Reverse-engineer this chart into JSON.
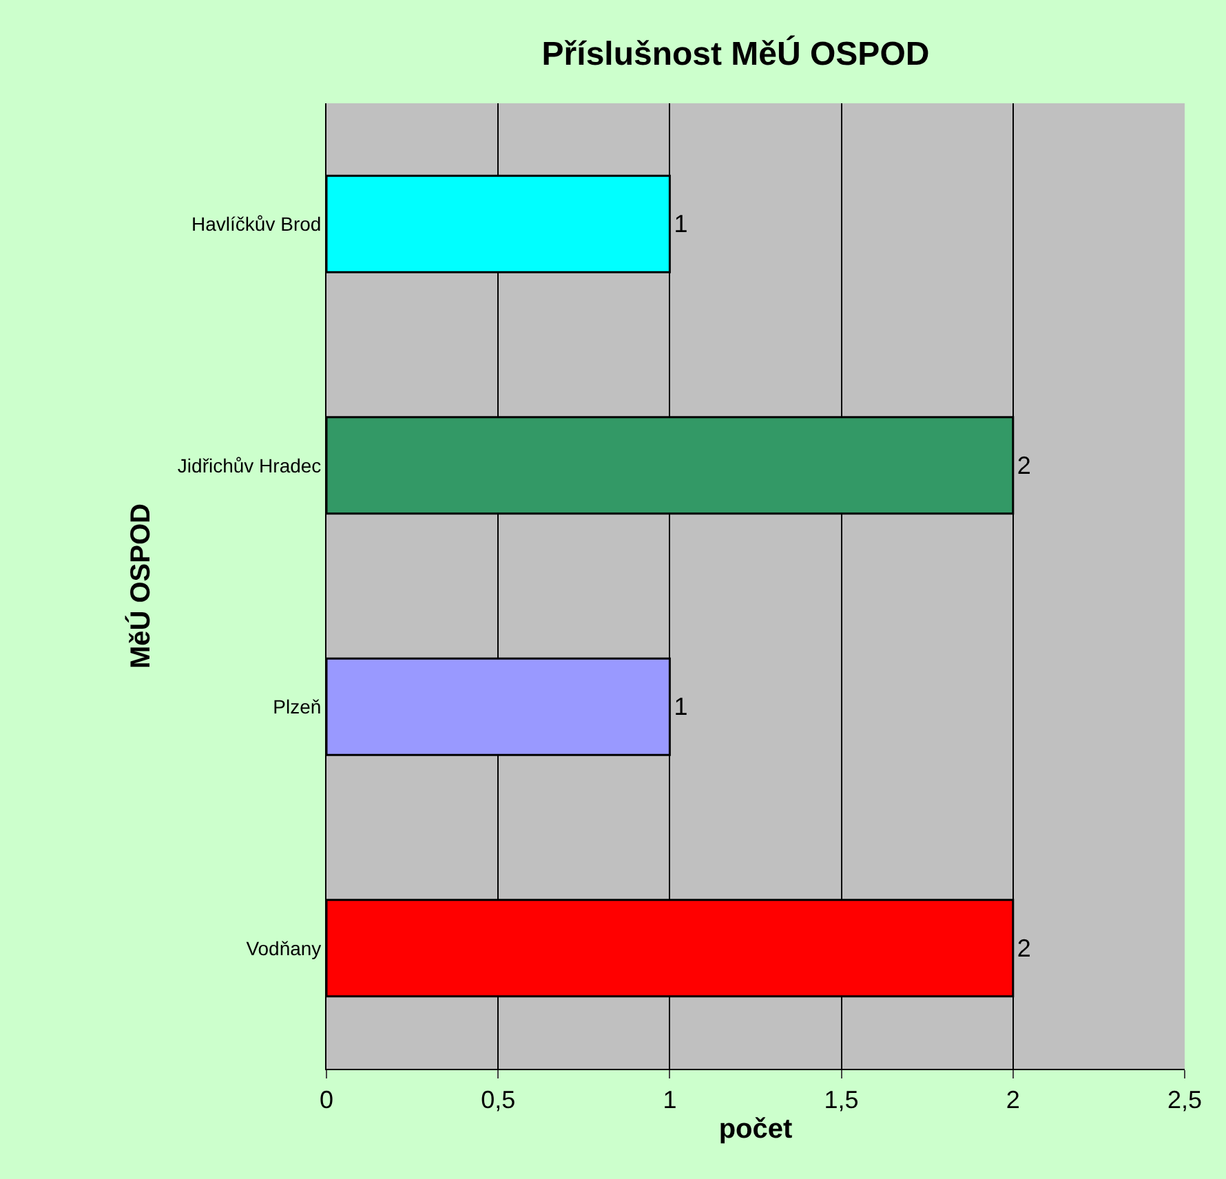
{
  "chart_data": {
    "type": "bar",
    "orientation": "horizontal",
    "title": "Příslušnost MěÚ OSPOD",
    "xlabel": "počet",
    "ylabel": "MěÚ OSPOD",
    "categories": [
      "Havlíčkův Brod",
      "Jidřichův Hradec",
      "Plzeň",
      "Vodňany"
    ],
    "values": [
      1,
      2,
      1,
      2
    ],
    "colors": [
      "#00ffff",
      "#339966",
      "#9999ff",
      "#ff0000"
    ],
    "xlim": [
      0,
      2.5
    ],
    "xticks": [
      0,
      {
        "value": 0.5,
        "label": "0,5"
      },
      1,
      {
        "value": 1.5,
        "label": "1,5"
      },
      2,
      {
        "value": 2.5,
        "label": "2,5"
      }
    ],
    "grid": "x",
    "data_labels": true,
    "legend": false
  }
}
